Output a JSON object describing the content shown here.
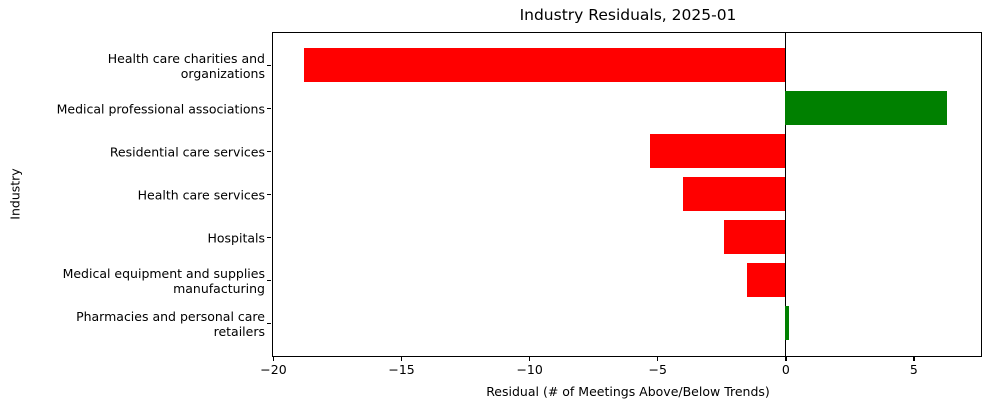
{
  "chart_data": {
    "type": "bar",
    "orientation": "horizontal",
    "title": "Industry Residuals, 2025-01",
    "xlabel": "Residual (# of Meetings Above/Below Trends)",
    "ylabel": "Industry",
    "categories": [
      "Health care charities and\norganizations",
      "Medical professional associations",
      "Residential care services",
      "Health care services",
      "Hospitals",
      "Medical equipment and supplies\nmanufacturing",
      "Pharmacies and personal care\nretailers"
    ],
    "values": [
      -18.8,
      6.3,
      -5.3,
      -4.0,
      -2.4,
      -1.5,
      0.15
    ],
    "bar_colors": [
      "#ff0000",
      "#008000",
      "#ff0000",
      "#ff0000",
      "#ff0000",
      "#ff0000",
      "#008000"
    ],
    "negative_color": "#ff0000",
    "positive_color": "#008000",
    "xlim": [
      -20.0,
      7.6
    ],
    "xtick_values": [
      -20,
      -15,
      -10,
      -5,
      0,
      5
    ],
    "xtick_labels": [
      "−20",
      "−15",
      "−10",
      "−5",
      "0",
      "5"
    ],
    "grid": false,
    "legend": null,
    "zero_line": true,
    "bar_width_fraction": 0.8
  }
}
